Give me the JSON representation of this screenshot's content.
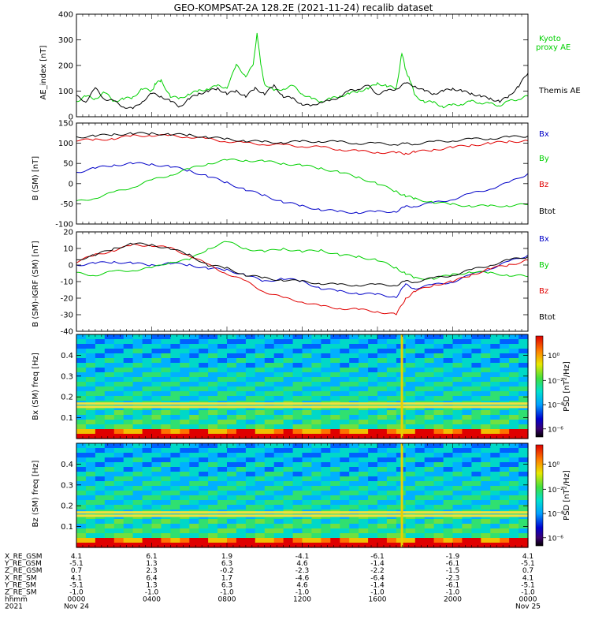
{
  "chart_data": [
    {
      "type": "line",
      "title": "GEO-KOMPSAT-2A 128.2E (2021-11-24) recalib dataset",
      "ylabel": "AE_index [nT]",
      "ylim": [
        0,
        400
      ],
      "yticks": [
        "0",
        "100",
        "200",
        "300",
        "400"
      ],
      "series": [
        {
          "name": "Kyoto proxy AE",
          "color": "#00d000",
          "x": [
            0,
            0.5,
            1,
            1.5,
            2,
            2.5,
            3,
            3.5,
            4,
            4.2,
            4.5,
            5,
            5.5,
            6,
            6.5,
            7,
            7.5,
            8,
            8.5,
            9,
            9.4,
            9.6,
            9.8,
            10,
            10.5,
            11,
            11.5,
            12,
            12.5,
            13,
            13.5,
            14,
            14.5,
            15,
            15.5,
            16,
            16.5,
            17,
            17.3,
            17.5,
            17.7,
            18,
            18.5,
            19,
            19.5,
            20,
            20.5,
            21,
            21.5,
            22,
            22.5,
            23,
            23.5,
            24
          ],
          "y": [
            60,
            80,
            70,
            95,
            60,
            70,
            75,
            110,
            100,
            130,
            140,
            80,
            70,
            90,
            100,
            110,
            120,
            115,
            200,
            160,
            200,
            330,
            200,
            130,
            100,
            110,
            120,
            90,
            70,
            60,
            70,
            80,
            90,
            100,
            110,
            130,
            120,
            110,
            250,
            180,
            150,
            80,
            60,
            55,
            40,
            45,
            50,
            60,
            55,
            50,
            45,
            60,
            70,
            80
          ]
        },
        {
          "name": "Themis AE",
          "color": "#000000",
          "x": [
            0,
            0.5,
            1,
            1.5,
            2,
            2.5,
            3,
            3.5,
            4,
            4.5,
            5,
            5.5,
            6,
            6.5,
            7,
            7.5,
            8,
            8.5,
            9,
            9.5,
            10,
            10.5,
            11,
            11.5,
            12,
            12.5,
            13,
            13.5,
            14,
            14.5,
            15,
            15.5,
            16,
            16.5,
            17,
            17.5,
            18,
            18.5,
            19,
            19.5,
            20,
            20.5,
            21,
            21.5,
            22,
            22.5,
            23,
            23.5,
            24
          ],
          "y": [
            80,
            60,
            110,
            70,
            60,
            40,
            30,
            60,
            90,
            80,
            60,
            40,
            70,
            90,
            100,
            110,
            90,
            100,
            80,
            110,
            90,
            120,
            80,
            70,
            50,
            40,
            60,
            60,
            80,
            100,
            110,
            120,
            90,
            100,
            110,
            130,
            120,
            100,
            90,
            100,
            110,
            100,
            90,
            80,
            70,
            60,
            80,
            120,
            170
          ]
        }
      ]
    },
    {
      "type": "line",
      "ylabel": "B (SM) [nT]",
      "ylim": [
        -100,
        150
      ],
      "yticks": [
        "-100",
        "-50",
        "0",
        "50",
        "100",
        "150"
      ],
      "series": [
        {
          "name": "Bx",
          "color": "#0000c8",
          "x": [
            0,
            1,
            2,
            3,
            4,
            5,
            6,
            7,
            8,
            9,
            10,
            11,
            12,
            13,
            14,
            15,
            16,
            17,
            17.5,
            18,
            19,
            20,
            21,
            22,
            23,
            24
          ],
          "y": [
            28,
            38,
            46,
            50,
            48,
            42,
            32,
            18,
            2,
            -15,
            -30,
            -45,
            -56,
            -64,
            -70,
            -71,
            -70,
            -68,
            -58,
            -55,
            -48,
            -38,
            -25,
            -12,
            2,
            25
          ]
        },
        {
          "name": "By",
          "color": "#00d000",
          "x": [
            0,
            1,
            2,
            3,
            4,
            5,
            6,
            7,
            8,
            9,
            10,
            11,
            12,
            13,
            14,
            15,
            16,
            17,
            17.5,
            18,
            19,
            20,
            21,
            22,
            23,
            24
          ],
          "y": [
            -45,
            -35,
            -22,
            -8,
            8,
            22,
            36,
            50,
            58,
            58,
            55,
            50,
            45,
            38,
            28,
            15,
            0,
            -20,
            -30,
            -38,
            -46,
            -52,
            -55,
            -56,
            -54,
            -52
          ]
        },
        {
          "name": "Bz",
          "color": "#e00000",
          "x": [
            0,
            1,
            2,
            3,
            4,
            5,
            6,
            7,
            8,
            9,
            10,
            11,
            12,
            13,
            14,
            15,
            16,
            17,
            17.5,
            18,
            19,
            20,
            21,
            22,
            23,
            24
          ],
          "y": [
            108,
            108,
            112,
            118,
            120,
            118,
            116,
            110,
            105,
            100,
            98,
            95,
            93,
            90,
            85,
            80,
            78,
            76,
            75,
            78,
            84,
            90,
            95,
            100,
            104,
            106
          ]
        },
        {
          "name": "Btot",
          "color": "#000000",
          "x": [
            0,
            1,
            2,
            3,
            4,
            5,
            6,
            7,
            8,
            9,
            10,
            11,
            12,
            13,
            14,
            15,
            16,
            17,
            17.5,
            18,
            19,
            20,
            21,
            22,
            23,
            24
          ],
          "y": [
            115,
            118,
            122,
            124,
            124,
            122,
            120,
            115,
            110,
            106,
            103,
            102,
            104,
            105,
            103,
            100,
            99,
            98,
            98,
            99,
            103,
            107,
            110,
            112,
            115,
            118
          ]
        }
      ]
    },
    {
      "type": "line",
      "ylabel": "B (SM)-IGRF (SM) [nT]",
      "ylim": [
        -40,
        20
      ],
      "yticks": [
        "-40",
        "-30",
        "-20",
        "-10",
        "0",
        "10",
        "20"
      ],
      "series": [
        {
          "name": "Bx",
          "color": "#0000c8",
          "x": [
            0,
            1,
            2,
            3,
            4,
            5,
            6,
            7,
            8,
            9,
            10,
            11,
            12,
            13,
            14,
            15,
            16,
            17,
            17.5,
            18,
            19,
            20,
            21,
            22,
            23,
            24
          ],
          "y": [
            0,
            1,
            2,
            1,
            0,
            1,
            0,
            -2,
            -3,
            -6,
            -10,
            -8,
            -10,
            -14,
            -16,
            -17,
            -18,
            -19,
            -12,
            -14,
            -12,
            -10,
            -6,
            -2,
            2,
            6
          ]
        },
        {
          "name": "By",
          "color": "#00d000",
          "x": [
            0,
            1,
            2,
            3,
            4,
            5,
            6,
            7,
            8,
            9,
            10,
            11,
            12,
            13,
            14,
            15,
            16,
            17,
            17.5,
            18,
            19,
            20,
            21,
            22,
            23,
            24
          ],
          "y": [
            -5,
            -6,
            -4,
            -3,
            -2,
            2,
            3,
            10,
            14,
            10,
            8,
            10,
            8,
            9,
            6,
            5,
            3,
            -2,
            -5,
            -8,
            -8,
            -6,
            -4,
            -5,
            -6,
            -7
          ]
        },
        {
          "name": "Bz",
          "color": "#e00000",
          "x": [
            0,
            1,
            2,
            3,
            4,
            5,
            6,
            7,
            8,
            9,
            10,
            11,
            12,
            13,
            14,
            15,
            16,
            17,
            17.5,
            18,
            19,
            20,
            21,
            22,
            23,
            24
          ],
          "y": [
            2,
            6,
            9,
            12,
            12,
            10,
            6,
            0,
            -5,
            -10,
            -16,
            -20,
            -22,
            -25,
            -26,
            -27,
            -28,
            -30,
            -20,
            -16,
            -12,
            -10,
            -6,
            -2,
            0,
            3
          ]
        },
        {
          "name": "Btot",
          "color": "#000000",
          "x": [
            0,
            1,
            2,
            3,
            4,
            5,
            6,
            7,
            8,
            9,
            10,
            11,
            12,
            13,
            14,
            15,
            16,
            17,
            17.5,
            18,
            19,
            20,
            21,
            22,
            23,
            24
          ],
          "y": [
            3,
            6,
            10,
            13,
            12,
            10,
            6,
            0,
            -2,
            -6,
            -8,
            -9,
            -10,
            -11,
            -12,
            -12,
            -12,
            -12,
            -10,
            -10,
            -8,
            -6,
            -3,
            0,
            3,
            5
          ]
        }
      ]
    },
    {
      "type": "heatmap",
      "ylabel": "Bx (SM) freq [Hz]",
      "yticks": [
        "0.1",
        "0.2",
        "0.3",
        "0.4"
      ],
      "ylim": [
        0,
        0.5
      ],
      "colorbar_label": "PSD [nT²/Hz]",
      "colorbar_ticks": [
        "10⁰",
        "10⁻²",
        "10⁻⁴",
        "10⁻⁶"
      ],
      "features": {
        "lines_hz": [
          0.168,
          0.152
        ],
        "spike_hour": 17.3
      }
    },
    {
      "type": "heatmap",
      "ylabel": "Bz (SM) freq [Hz]",
      "yticks": [
        "0.1",
        "0.2",
        "0.3",
        "0.4"
      ],
      "ylim": [
        0,
        0.5
      ],
      "colorbar_label": "PSD [nT²/Hz]",
      "colorbar_ticks": [
        "10⁰",
        "10⁻²",
        "10⁻⁴",
        "10⁻⁶"
      ],
      "features": {
        "lines_hz": [
          0.168,
          0.152
        ],
        "spike_hour": 17.3
      }
    }
  ],
  "right_labels": {
    "ae": [
      "Kyoto",
      "proxy AE",
      "Themis AE"
    ],
    "b": [
      "Bx",
      "By",
      "Bz",
      "Btot"
    ],
    "db": [
      "Bx",
      "By",
      "Bz",
      "Btot"
    ]
  },
  "ephemeris": {
    "row_labels": [
      "X_RE_GSM",
      "Y_RE_GSM",
      "Z_RE_GSM",
      "X_RE_SM",
      "Y_RE_SM",
      "Z_RE_SM",
      "hhmm",
      "2021"
    ],
    "columns": [
      [
        "4.1",
        "-5.1",
        "0.7",
        "4.1",
        "-5.1",
        "-1.0",
        "0000",
        "Nov 24"
      ],
      [
        "6.1",
        "1.3",
        "2.3",
        "6.4",
        "1.3",
        "-1.0",
        "0400",
        ""
      ],
      [
        "1.9",
        "6.3",
        "-0.2",
        "1.7",
        "6.3",
        "-1.0",
        "0800",
        ""
      ],
      [
        "-4.1",
        "4.6",
        "-2.3",
        "-4.6",
        "4.6",
        "-1.0",
        "1200",
        ""
      ],
      [
        "-6.1",
        "-1.4",
        "-2.2",
        "-6.4",
        "-1.4",
        "-1.0",
        "1600",
        ""
      ],
      [
        "-1.9",
        "-6.1",
        "-1.5",
        "-2.3",
        "-6.1",
        "-1.0",
        "2000",
        ""
      ],
      [
        "4.1",
        "-5.1",
        "0.7",
        "4.1",
        "-5.1",
        "-1.0",
        "0000",
        "Nov 25"
      ]
    ]
  }
}
